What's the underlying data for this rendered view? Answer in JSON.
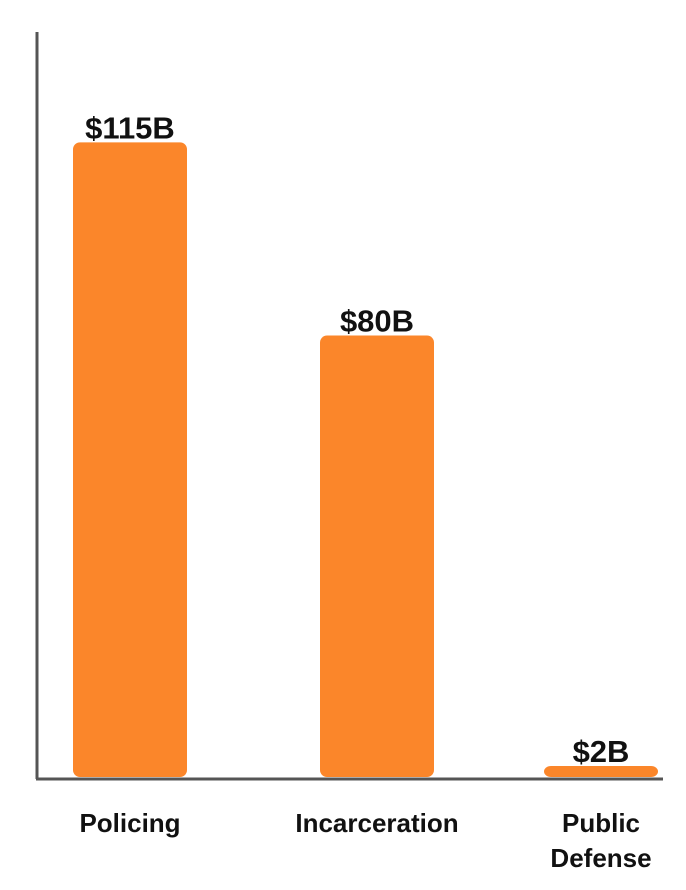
{
  "chart_data": {
    "type": "bar",
    "categories": [
      "Policing",
      "Incarceration",
      "Public Defense"
    ],
    "category_label_lines": [
      [
        "Policing"
      ],
      [
        "Incarceration"
      ],
      [
        "Public",
        "Defense"
      ]
    ],
    "values": [
      115,
      80,
      2
    ],
    "value_labels": [
      "$115B",
      "$80B",
      "$2B"
    ],
    "title": "",
    "xlabel": "",
    "ylabel": "",
    "ylim": [
      0,
      135
    ],
    "grid": false,
    "bar_color": "#fb862a",
    "axis_color": "#555555"
  }
}
